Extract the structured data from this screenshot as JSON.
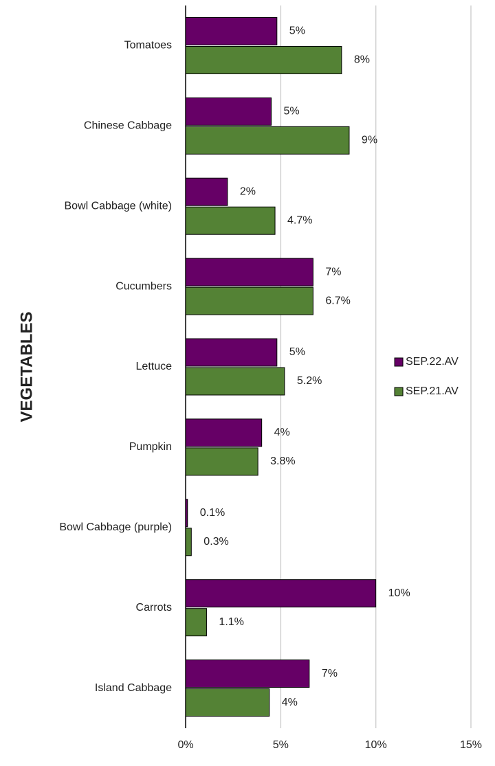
{
  "chart_data": {
    "type": "barh",
    "ylabel": "VEGETABLES",
    "categories": [
      "Tomatoes",
      "Chinese Cabbage",
      "Bowl Cabbage (white)",
      "Cucumbers",
      "Lettuce",
      "Pumpkin",
      "Bowl Cabbage (purple)",
      "Carrots",
      "Island Cabbage"
    ],
    "series": [
      {
        "name": "SEP.22.AV",
        "color": "#660066",
        "values": [
          4.8,
          4.5,
          2.2,
          6.7,
          4.8,
          4.0,
          0.1,
          10.0,
          6.5
        ],
        "value_labels": [
          "5%",
          "5%",
          "2%",
          "7%",
          "5%",
          "4%",
          "0.1%",
          "10%",
          "7%"
        ]
      },
      {
        "name": "SEP.21.AV",
        "color": "#548235",
        "values": [
          8.2,
          8.6,
          4.7,
          6.7,
          5.2,
          3.8,
          0.3,
          1.1,
          4.4
        ],
        "value_labels": [
          "8%",
          "9%",
          "4.7%",
          "6.7%",
          "5.2%",
          "3.8%",
          "0.3%",
          "1.1%",
          "4%"
        ]
      }
    ],
    "xlim": [
      0,
      15
    ],
    "xticks": [
      {
        "value": 0,
        "label": "0%"
      },
      {
        "value": 5,
        "label": "5%"
      },
      {
        "value": 10,
        "label": "10%"
      },
      {
        "value": 15,
        "label": "15%"
      }
    ],
    "grid": true,
    "legend": "right"
  }
}
